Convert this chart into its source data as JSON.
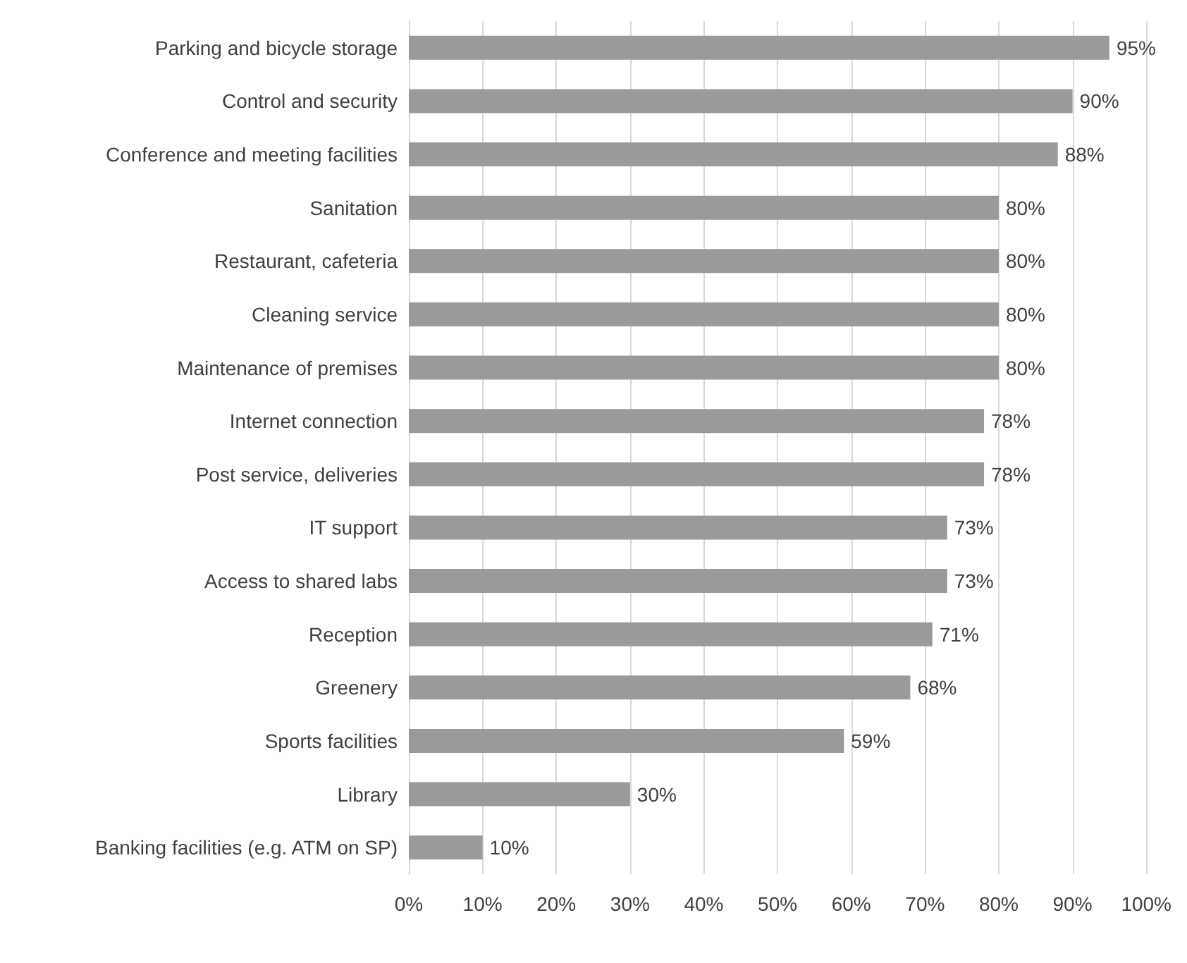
{
  "chart_data": {
    "type": "bar",
    "orientation": "horizontal",
    "categories": [
      "Parking and bicycle storage",
      "Control and security",
      "Conference and meeting facilities",
      "Sanitation",
      "Restaurant, cafeteria",
      "Cleaning service",
      "Maintenance of premises",
      "Internet connection",
      "Post service, deliveries",
      "IT support",
      "Access to shared labs",
      "Reception",
      "Greenery",
      "Sports facilities",
      "Library",
      "Banking facilities (e.g. ATM on SP)"
    ],
    "values": [
      95,
      90,
      88,
      80,
      80,
      80,
      80,
      78,
      78,
      73,
      73,
      71,
      68,
      59,
      30,
      10
    ],
    "value_labels": [
      "95%",
      "90%",
      "88%",
      "80%",
      "80%",
      "80%",
      "80%",
      "78%",
      "78%",
      "73%",
      "73%",
      "71%",
      "68%",
      "59%",
      "30%",
      "10%"
    ],
    "color": "#9a9a9a",
    "xlim": [
      0,
      100
    ],
    "xticks": [
      {
        "value": 0,
        "label": "0%"
      },
      {
        "value": 10,
        "label": "10%"
      },
      {
        "value": 20,
        "label": "20%"
      },
      {
        "value": 30,
        "label": "30%"
      },
      {
        "value": 40,
        "label": "40%"
      },
      {
        "value": 50,
        "label": "50%"
      },
      {
        "value": 60,
        "label": "60%"
      },
      {
        "value": 70,
        "label": "70%"
      },
      {
        "value": 80,
        "label": "80%"
      },
      {
        "value": 90,
        "label": "90%"
      },
      {
        "value": 100,
        "label": "100%"
      }
    ],
    "grid": "x"
  }
}
